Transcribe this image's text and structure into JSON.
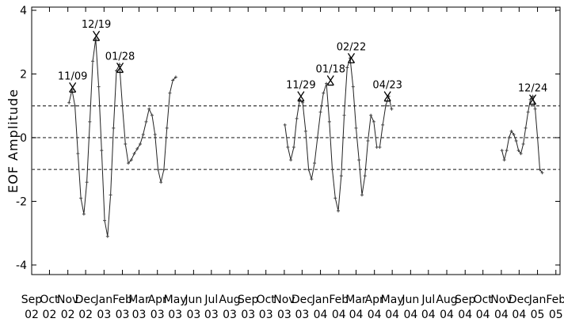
{
  "chart_data": {
    "type": "line",
    "title": "",
    "ylabel": "EOF Amplitude",
    "xlabel": "",
    "ylim": [
      -4.3,
      4.1
    ],
    "yticks": [
      4,
      2,
      0,
      -2,
      -4
    ],
    "ytick_labels": [
      "4",
      "2",
      "0",
      "-2",
      "-4"
    ],
    "x_tick_labels": [
      {
        "month": "Sep",
        "year": "02"
      },
      {
        "month": "Oct",
        "year": "02"
      },
      {
        "month": "Nov",
        "year": "02"
      },
      {
        "month": "Dec",
        "year": "02"
      },
      {
        "month": "Jan",
        "year": "03"
      },
      {
        "month": "Feb",
        "year": "03"
      },
      {
        "month": "Mar",
        "year": "03"
      },
      {
        "month": "Apr",
        "year": "03"
      },
      {
        "month": "May",
        "year": "03"
      },
      {
        "month": "Jun",
        "year": "03"
      },
      {
        "month": "Jul",
        "year": "03"
      },
      {
        "month": "Aug",
        "year": "03"
      },
      {
        "month": "Sep",
        "year": "03"
      },
      {
        "month": "Oct",
        "year": "03"
      },
      {
        "month": "Nov",
        "year": "03"
      },
      {
        "month": "Dec",
        "year": "03"
      },
      {
        "month": "Jan",
        "year": "04"
      },
      {
        "month": "Feb",
        "year": "04"
      },
      {
        "month": "Mar",
        "year": "04"
      },
      {
        "month": "Apr",
        "year": "04"
      },
      {
        "month": "May",
        "year": "04"
      },
      {
        "month": "Jun",
        "year": "04"
      },
      {
        "month": "Jul",
        "year": "04"
      },
      {
        "month": "Aug",
        "year": "04"
      },
      {
        "month": "Sep",
        "year": "04"
      },
      {
        "month": "Oct",
        "year": "04"
      },
      {
        "month": "Nov",
        "year": "04"
      },
      {
        "month": "Dec",
        "year": "04"
      },
      {
        "month": "Jan",
        "year": "05"
      },
      {
        "month": "Feb",
        "year": "05"
      }
    ],
    "reference_lines": [
      1,
      0,
      -1
    ],
    "segments": [
      {
        "x": [
          "2002-11-03",
          "2002-11-08",
          "2002-11-13",
          "2002-11-18",
          "2002-11-23",
          "2002-11-28",
          "2002-12-03",
          "2002-12-08",
          "2002-12-13",
          "2002-12-18",
          "2002-12-23",
          "2002-12-28",
          "2003-01-02",
          "2003-01-07",
          "2003-01-12",
          "2003-01-17",
          "2003-01-22",
          "2003-01-27",
          "2003-02-01",
          "2003-02-06",
          "2003-02-11",
          "2003-02-16",
          "2003-02-21",
          "2003-02-26",
          "2003-03-03",
          "2003-03-08",
          "2003-03-13",
          "2003-03-18",
          "2003-03-23",
          "2003-03-28",
          "2003-04-02",
          "2003-04-07",
          "2003-04-12",
          "2003-04-17",
          "2003-04-22",
          "2003-04-27",
          "2003-05-02"
        ],
        "y": [
          1.1,
          1.5,
          1.0,
          -0.5,
          -1.9,
          -2.4,
          -1.4,
          0.5,
          2.4,
          3.1,
          1.6,
          -0.4,
          -2.6,
          -3.1,
          -1.8,
          0.3,
          2.1,
          2.3,
          1.0,
          -0.2,
          -0.8,
          -0.7,
          -0.5,
          -0.35,
          -0.2,
          0.1,
          0.5,
          0.9,
          0.7,
          0.1,
          -1.0,
          -1.4,
          -1.0,
          0.3,
          1.4,
          1.8,
          1.9
        ]
      },
      {
        "x": [
          "2003-11-02",
          "2003-11-07",
          "2003-11-12",
          "2003-11-17",
          "2003-11-22",
          "2003-11-27",
          "2003-12-02",
          "2003-12-07",
          "2003-12-12",
          "2003-12-17",
          "2003-12-22",
          "2003-12-27",
          "2004-01-01",
          "2004-01-06",
          "2004-01-11",
          "2004-01-16",
          "2004-01-21",
          "2004-01-26",
          "2004-01-31",
          "2004-02-05",
          "2004-02-10",
          "2004-02-15",
          "2004-02-20",
          "2004-02-25",
          "2004-03-01",
          "2004-03-06",
          "2004-03-11",
          "2004-03-16",
          "2004-03-21",
          "2004-03-26",
          "2004-03-31",
          "2004-04-05",
          "2004-04-10",
          "2004-04-15",
          "2004-04-20",
          "2004-04-25",
          "2004-04-30"
        ],
        "y": [
          0.4,
          -0.3,
          -0.7,
          -0.3,
          0.6,
          1.2,
          1.1,
          0.2,
          -1.0,
          -1.3,
          -0.8,
          0.0,
          0.8,
          1.4,
          1.7,
          0.5,
          -1.0,
          -1.9,
          -2.3,
          -1.2,
          0.7,
          2.2,
          2.5,
          1.6,
          0.3,
          -0.7,
          -1.8,
          -1.2,
          -0.1,
          0.7,
          0.5,
          -0.3,
          -0.3,
          0.4,
          1.0,
          1.3,
          0.9
        ]
      },
      {
        "x": [
          "2004-11-02",
          "2004-11-06",
          "2004-11-10",
          "2004-11-14",
          "2004-11-18",
          "2004-11-22",
          "2004-11-26",
          "2004-11-30",
          "2004-12-04",
          "2004-12-08",
          "2004-12-12",
          "2004-12-16",
          "2004-12-20",
          "2004-12-24",
          "2004-12-28",
          "2005-01-01",
          "2005-01-05",
          "2005-01-09"
        ],
        "y": [
          -0.4,
          -0.7,
          -0.4,
          0.0,
          0.2,
          0.1,
          -0.1,
          -0.4,
          -0.5,
          -0.2,
          0.3,
          0.8,
          1.2,
          1.3,
          0.9,
          0.0,
          -1.0,
          -1.1
        ]
      }
    ],
    "annotations": [
      {
        "label": "11/09",
        "x": "2002-11-09",
        "y": 1.58
      },
      {
        "label": "12/19",
        "x": "2002-12-19",
        "y": 3.2
      },
      {
        "label": "01/28",
        "x": "2003-01-28",
        "y": 2.2
      },
      {
        "label": "11/29",
        "x": "2003-11-29",
        "y": 1.3
      },
      {
        "label": "01/18",
        "x": "2004-01-18",
        "y": 1.8
      },
      {
        "label": "02/22",
        "x": "2004-02-22",
        "y": 2.5
      },
      {
        "label": "04/23",
        "x": "2004-04-23",
        "y": 1.3
      },
      {
        "label": "12/24",
        "x": "2004-12-24",
        "y": 1.2
      }
    ]
  }
}
